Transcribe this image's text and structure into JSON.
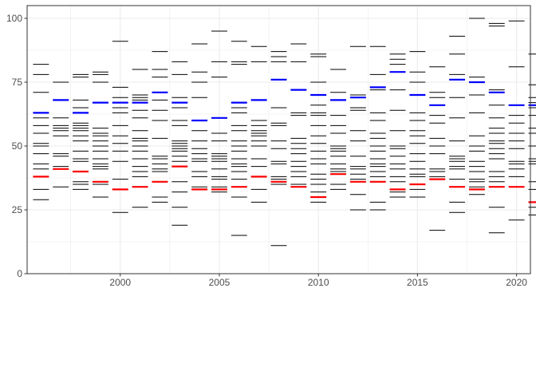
{
  "chart_data": {
    "type": "scatter",
    "mark": "horizontal dash",
    "title": "",
    "xlabel": "",
    "ylabel": "",
    "xlim": [
      1995.3,
      2020.7
    ],
    "ylim": [
      0,
      105
    ],
    "grid": true,
    "legend": "none",
    "x_ticks": [
      2000,
      2005,
      2010,
      2015,
      2020
    ],
    "y_ticks": [
      0,
      25,
      50,
      75,
      100
    ],
    "colors": {
      "other": "#000000",
      "max": "#0000ff",
      "min": "#ff0000",
      "grid": "#ebebeb",
      "panel_border": "#333333"
    },
    "groups": [
      {
        "x": 1996,
        "values": [
          82,
          78,
          71,
          63,
          61,
          58,
          55,
          51,
          50,
          47,
          43,
          41,
          38,
          33,
          29
        ],
        "max": 63,
        "min": 38
      },
      {
        "x": 1997,
        "values": [
          75,
          68,
          61,
          58,
          57,
          56,
          54,
          47,
          46,
          42,
          41,
          34
        ],
        "max": 68,
        "min": 41
      },
      {
        "x": 1998,
        "values": [
          78,
          77,
          68,
          65,
          63,
          59,
          58,
          57,
          56,
          54,
          52,
          48,
          45,
          44,
          40,
          36,
          35,
          33
        ],
        "max": 63,
        "min": 40
      },
      {
        "x": 1999,
        "values": [
          79,
          78,
          75,
          67,
          57,
          55,
          54,
          52,
          50,
          48,
          45,
          43,
          42,
          41,
          36,
          35,
          30
        ],
        "max": 67,
        "min": 36
      },
      {
        "x": 2000,
        "values": [
          91,
          73,
          69,
          67,
          65,
          63,
          58,
          54,
          51,
          48,
          44,
          37,
          33,
          24
        ],
        "max": 67,
        "min": 33
      },
      {
        "x": 2001,
        "values": [
          80,
          70,
          69,
          68,
          67,
          64,
          61,
          56,
          53,
          52,
          50,
          48,
          45,
          42,
          40,
          38,
          34,
          26
        ],
        "max": 67,
        "min": 34
      },
      {
        "x": 2002,
        "values": [
          87,
          80,
          77,
          71,
          68,
          64,
          60,
          53,
          46,
          45,
          43,
          41,
          40,
          36,
          30,
          28
        ],
        "max": 71,
        "min": 36
      },
      {
        "x": 2003,
        "values": [
          83,
          78,
          69,
          67,
          65,
          60,
          58,
          52,
          51,
          50,
          49,
          48,
          46,
          44,
          42,
          36,
          32,
          26,
          19
        ],
        "max": 67,
        "min": 42
      },
      {
        "x": 2004,
        "values": [
          90,
          79,
          75,
          69,
          60,
          56,
          52,
          49,
          47,
          45,
          44,
          40,
          38,
          34,
          33
        ],
        "max": 60,
        "min": 33
      },
      {
        "x": 2005,
        "values": [
          95,
          83,
          77,
          61,
          55,
          52,
          47,
          46,
          45,
          44,
          41,
          38,
          37,
          34,
          33,
          32
        ],
        "max": 61,
        "min": 33
      },
      {
        "x": 2006,
        "values": [
          91,
          83,
          82,
          67,
          65,
          63,
          58,
          56,
          52,
          50,
          48,
          45,
          43,
          42,
          40,
          37,
          34,
          30,
          15
        ],
        "max": 67,
        "min": 34
      },
      {
        "x": 2007,
        "values": [
          89,
          83,
          68,
          60,
          58,
          56,
          55,
          54,
          52,
          50,
          45,
          42,
          38,
          33,
          28
        ],
        "max": 68,
        "min": 38
      },
      {
        "x": 2008,
        "values": [
          87,
          85,
          83,
          76,
          65,
          59,
          58,
          52,
          49,
          44,
          43,
          38,
          37,
          35,
          11
        ],
        "max": 76,
        "min": 36
      },
      {
        "x": 2009,
        "values": [
          90,
          83,
          72,
          63,
          62,
          53,
          51,
          49,
          47,
          44,
          42,
          40,
          38,
          35,
          34
        ],
        "max": 72,
        "min": 34
      },
      {
        "x": 2010,
        "values": [
          86,
          85,
          75,
          70,
          66,
          63,
          62,
          58,
          54,
          51,
          48,
          45,
          43,
          39,
          37,
          35,
          32,
          30,
          28
        ],
        "max": 70,
        "min": 30
      },
      {
        "x": 2011,
        "values": [
          80,
          71,
          68,
          62,
          58,
          55,
          50,
          49,
          48,
          46,
          43,
          41,
          40,
          39,
          35,
          33
        ],
        "max": 68,
        "min": 39
      },
      {
        "x": 2012,
        "values": [
          89,
          70,
          69,
          65,
          64,
          56,
          52,
          46,
          42,
          41,
          39,
          37,
          36,
          31,
          25
        ],
        "max": 69,
        "min": 36
      },
      {
        "x": 2013,
        "values": [
          89,
          78,
          73,
          72,
          63,
          60,
          55,
          53,
          50,
          48,
          45,
          43,
          42,
          40,
          38,
          36,
          28,
          25
        ],
        "max": 73,
        "min": 36
      },
      {
        "x": 2014,
        "values": [
          86,
          84,
          82,
          79,
          72,
          64,
          56,
          50,
          49,
          46,
          43,
          41,
          38,
          36,
          33,
          32,
          30
        ],
        "max": 79,
        "min": 33
      },
      {
        "x": 2015,
        "values": [
          87,
          79,
          75,
          70,
          63,
          60,
          56,
          54,
          51,
          47,
          44,
          41,
          39,
          38,
          35,
          33,
          30
        ],
        "max": 70,
        "min": 35
      },
      {
        "x": 2016,
        "values": [
          81,
          71,
          69,
          66,
          62,
          59,
          53,
          50,
          47,
          41,
          40,
          38,
          37,
          17
        ],
        "max": 66,
        "min": 37
      },
      {
        "x": 2017,
        "values": [
          93,
          86,
          78,
          76,
          69,
          61,
          52,
          46,
          45,
          44,
          42,
          41,
          37,
          34,
          28,
          24
        ],
        "max": 76,
        "min": 34
      },
      {
        "x": 2018,
        "values": [
          100,
          77,
          75,
          70,
          63,
          54,
          50,
          48,
          44,
          42,
          40,
          37,
          36,
          34,
          33,
          31
        ],
        "max": 75,
        "min": 33
      },
      {
        "x": 2019,
        "values": [
          98,
          97,
          72,
          71,
          66,
          61,
          57,
          55,
          52,
          51,
          49,
          47,
          45,
          40,
          38,
          36,
          34,
          26,
          16
        ],
        "max": 71,
        "min": 34
      },
      {
        "x": 2020,
        "values": [
          99,
          81,
          66,
          62,
          59,
          55,
          52,
          49,
          44,
          43,
          41,
          38,
          34,
          21
        ],
        "max": 66,
        "min": 34
      },
      {
        "x": 2021,
        "values": [
          86,
          74,
          69,
          67,
          66,
          65,
          62,
          57,
          55,
          50,
          45,
          44,
          43,
          36,
          33,
          28,
          26,
          23
        ],
        "max": 66,
        "min": 28
      }
    ]
  }
}
